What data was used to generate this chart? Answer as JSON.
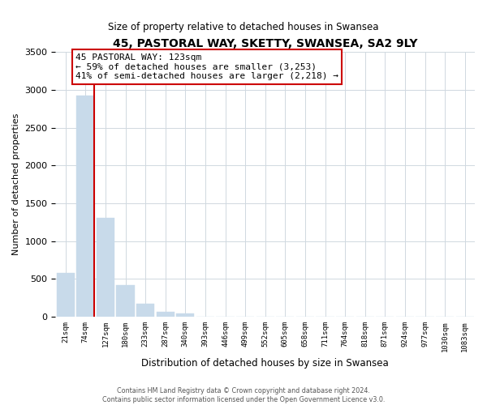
{
  "title": "45, PASTORAL WAY, SKETTY, SWANSEA, SA2 9LY",
  "subtitle": "Size of property relative to detached houses in Swansea",
  "xlabel": "Distribution of detached houses by size in Swansea",
  "ylabel": "Number of detached properties",
  "bar_labels": [
    "21sqm",
    "74sqm",
    "127sqm",
    "180sqm",
    "233sqm",
    "287sqm",
    "340sqm",
    "393sqm",
    "446sqm",
    "499sqm",
    "552sqm",
    "605sqm",
    "658sqm",
    "711sqm",
    "764sqm",
    "818sqm",
    "871sqm",
    "924sqm",
    "977sqm",
    "1030sqm",
    "1083sqm"
  ],
  "bar_values": [
    580,
    2920,
    1310,
    415,
    170,
    65,
    50,
    0,
    0,
    0,
    0,
    0,
    0,
    0,
    0,
    0,
    0,
    0,
    0,
    0,
    0
  ],
  "bar_color": "#c8daea",
  "marker_bar_index": 1,
  "marker_line_color": "#cc0000",
  "ylim": [
    0,
    3500
  ],
  "yticks": [
    0,
    500,
    1000,
    1500,
    2000,
    2500,
    3000,
    3500
  ],
  "annotation_text": "45 PASTORAL WAY: 123sqm\n← 59% of detached houses are smaller (3,253)\n41% of semi-detached houses are larger (2,218) →",
  "annotation_box_edgecolor": "#cc0000",
  "footer_line1": "Contains HM Land Registry data © Crown copyright and database right 2024.",
  "footer_line2": "Contains public sector information licensed under the Open Government Licence v3.0.",
  "figsize": [
    6.0,
    5.0
  ],
  "dpi": 100
}
